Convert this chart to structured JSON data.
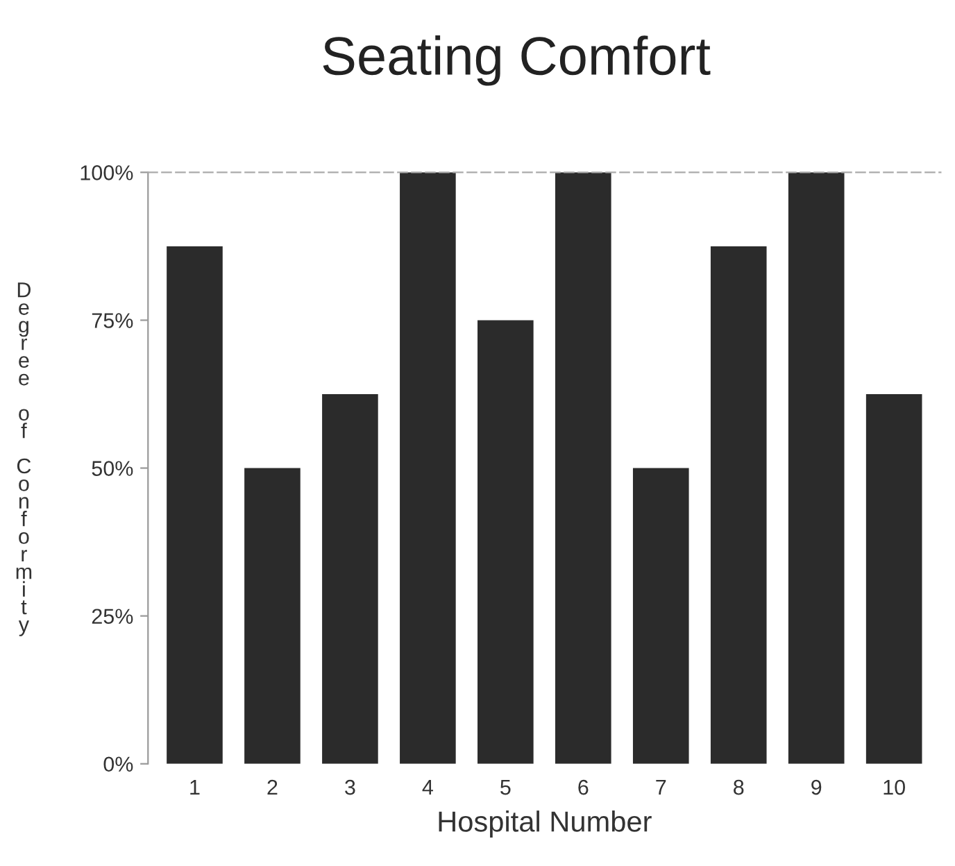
{
  "chart_data": {
    "type": "bar",
    "title": "Seating Comfort",
    "xlabel": "Hospital Number",
    "ylabel": "Degree of Conformity",
    "categories": [
      "1",
      "2",
      "3",
      "4",
      "5",
      "6",
      "7",
      "8",
      "9",
      "10"
    ],
    "values": [
      87.5,
      50,
      62.5,
      100,
      75,
      100,
      50,
      87.5,
      100,
      62.5
    ],
    "color": "#2b2b2b",
    "ylim": [
      0,
      100
    ],
    "yticks": [
      {
        "value": 0,
        "label": "0%"
      },
      {
        "value": 25,
        "label": "25%"
      },
      {
        "value": 50,
        "label": "50%"
      },
      {
        "value": 75,
        "label": "75%"
      },
      {
        "value": 100,
        "label": "100%"
      }
    ]
  }
}
